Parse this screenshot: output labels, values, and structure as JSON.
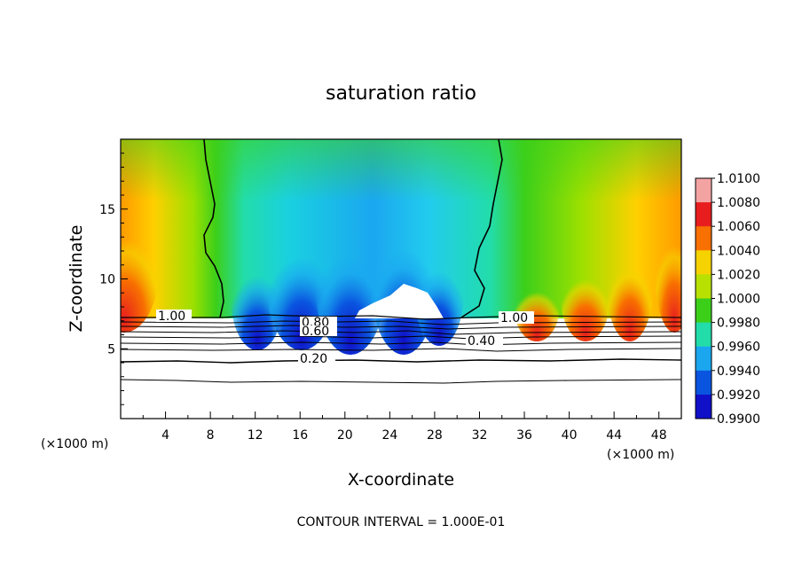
{
  "chart_data": {
    "type": "heatmap",
    "title": "saturation ratio",
    "xlabel": "X-coordinate",
    "ylabel": "Z-coordinate",
    "x_unit_left": "(×1000 m)",
    "x_unit_right": "(×1000 m)",
    "xlim": [
      0,
      50
    ],
    "ylim": [
      0,
      20
    ],
    "x_ticks": [
      "4",
      "8",
      "12",
      "16",
      "20",
      "24",
      "28",
      "32",
      "36",
      "40",
      "44",
      "48"
    ],
    "y_ticks": [
      "5",
      "10",
      "15"
    ],
    "colorbar": {
      "labels": [
        "1.0100",
        "1.0080",
        "1.0060",
        "1.0040",
        "1.0020",
        "1.0000",
        "0.9980",
        "0.9960",
        "0.9940",
        "0.9920",
        "0.9900"
      ],
      "colors": [
        "#f4a3a3",
        "#e81e1e",
        "#f87000",
        "#f5d200",
        "#b8e000",
        "#3ccf1a",
        "#22ddaa",
        "#1aa7f0",
        "#0a55e0",
        "#1010c8",
        "#6a00a8"
      ]
    },
    "contour_labels": [
      "1.00",
      "1.00",
      "0.80",
      "0.60",
      "0.40",
      "0.20"
    ],
    "footer": "CONTOUR INTERVAL = 1.000E-01"
  }
}
